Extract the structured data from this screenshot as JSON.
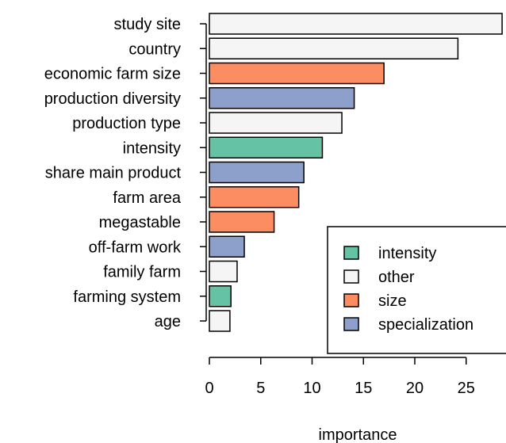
{
  "chart_data": {
    "type": "bar",
    "orientation": "horizontal",
    "xlabel": "importance",
    "ylabel": "",
    "xlim": [
      0,
      28
    ],
    "xticks": [
      0,
      5,
      10,
      15,
      20,
      25
    ],
    "grid": false,
    "legend_position": "bottom-right",
    "groups": [
      {
        "name": "intensity",
        "color": "#66c2a5"
      },
      {
        "name": "other",
        "color": "#f5f5f5"
      },
      {
        "name": "size",
        "color": "#fc8d62"
      },
      {
        "name": "specialization",
        "color": "#8da0cb"
      }
    ],
    "bars": [
      {
        "category": "study site",
        "value": 28.5,
        "group": "other"
      },
      {
        "category": "country",
        "value": 24.2,
        "group": "other"
      },
      {
        "category": "economic farm size",
        "value": 17.0,
        "group": "size"
      },
      {
        "category": "production diversity",
        "value": 14.1,
        "group": "specialization"
      },
      {
        "category": "production type",
        "value": 12.9,
        "group": "other"
      },
      {
        "category": "intensity",
        "value": 11.0,
        "group": "intensity"
      },
      {
        "category": "share main product",
        "value": 9.2,
        "group": "specialization"
      },
      {
        "category": "farm area",
        "value": 8.7,
        "group": "size"
      },
      {
        "category": "megastable",
        "value": 6.3,
        "group": "size"
      },
      {
        "category": "off-farm work",
        "value": 3.4,
        "group": "specialization"
      },
      {
        "category": "family farm",
        "value": 2.7,
        "group": "other"
      },
      {
        "category": "farming system",
        "value": 2.1,
        "group": "intensity"
      },
      {
        "category": "age",
        "value": 2.0,
        "group": "other"
      }
    ]
  }
}
